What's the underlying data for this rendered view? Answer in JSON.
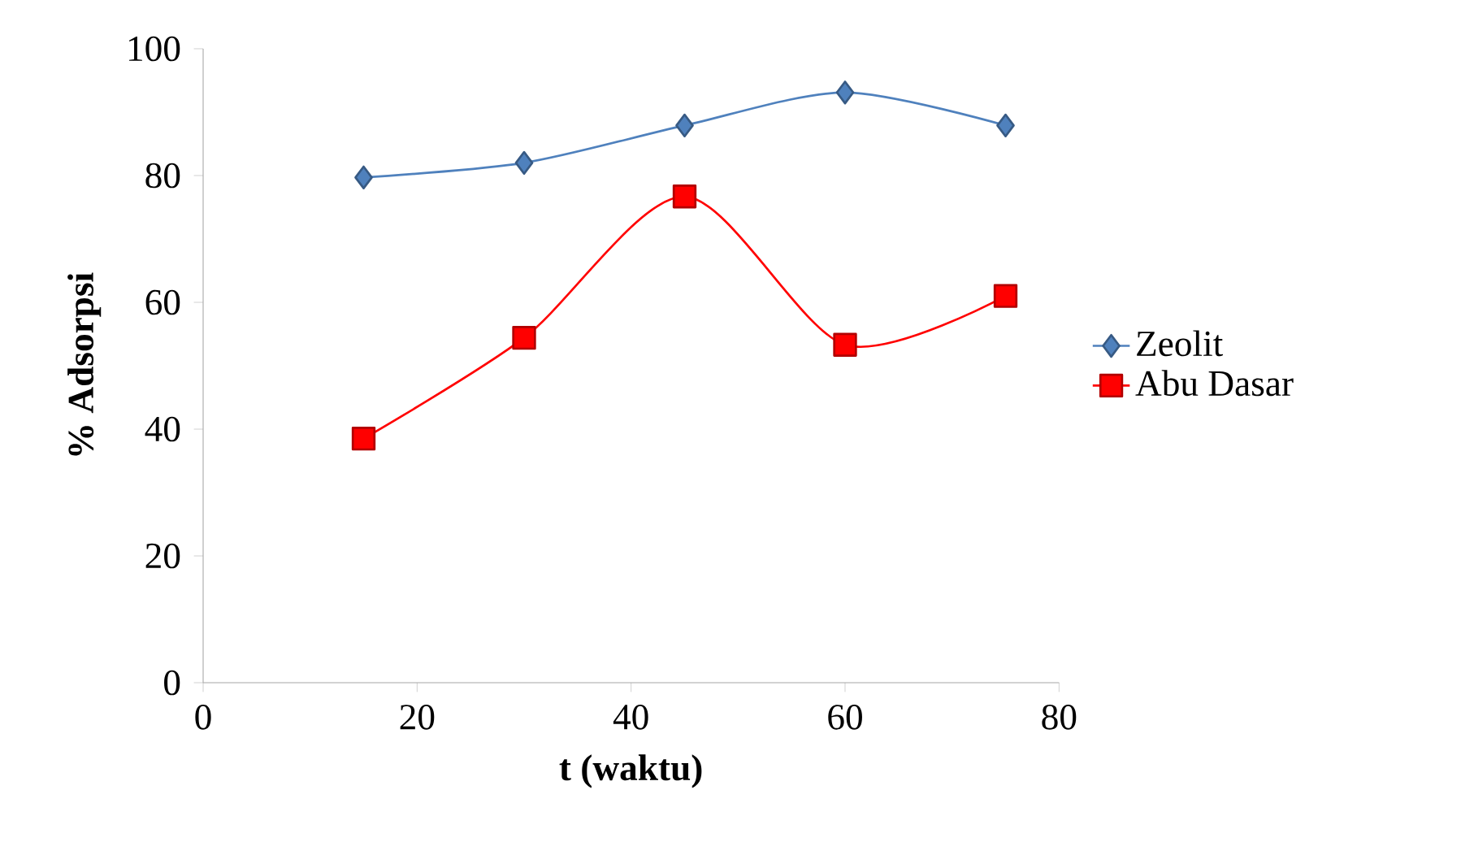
{
  "chart_data": {
    "type": "line",
    "xlabel": "t (waktu)",
    "ylabel": "% Adsorpsi",
    "x": [
      15,
      30,
      45,
      60,
      75
    ],
    "series": [
      {
        "name": "Zeolit",
        "color": "#4f81bd",
        "marker": "diamond",
        "values": [
          79.7,
          82.0,
          87.9,
          93.1,
          87.9
        ]
      },
      {
        "name": "Abu Dasar",
        "color": "#ff0000",
        "marker": "square",
        "values": [
          38.5,
          54.4,
          76.7,
          53.3,
          61.0
        ]
      }
    ],
    "xlim": [
      0,
      80
    ],
    "ylim": [
      0,
      100
    ],
    "xticks": [
      0,
      20,
      40,
      60,
      80
    ],
    "yticks": [
      0,
      20,
      40,
      60,
      80,
      100
    ],
    "grid": false,
    "legend": "right",
    "line_style": "solid"
  }
}
